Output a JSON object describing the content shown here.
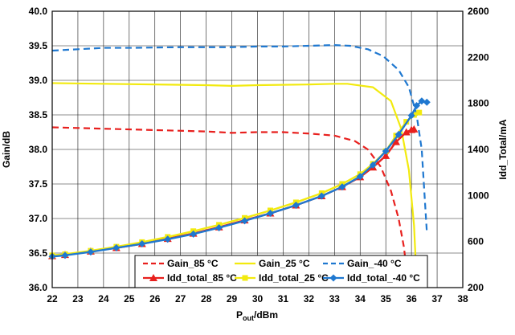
{
  "chart_data": {
    "type": "line",
    "xlabel": "P",
    "xlabel_sub": "out",
    "xlabel_suffix": "/dBm",
    "ylabel_left": "Gain/dB",
    "ylabel_right": "Idd_Total/mA",
    "xlim": [
      22,
      38
    ],
    "ylim_left": [
      36.0,
      40.0
    ],
    "ylim_right": [
      200,
      2600
    ],
    "x_ticks": [
      22,
      23,
      24,
      25,
      26,
      27,
      28,
      29,
      30,
      31,
      32,
      33,
      34,
      35,
      36,
      37,
      38
    ],
    "y_left_ticks": [
      "36.0",
      "36.5",
      "37.0",
      "37.5",
      "38.0",
      "38.5",
      "39.0",
      "39.5",
      "40.0"
    ],
    "y_right_ticks": [
      "200",
      "600",
      "1000",
      "1400",
      "1800",
      "2200",
      "2600"
    ],
    "grid": true,
    "legend_position": "bottom-center",
    "series": [
      {
        "name": "Gain_85 °C",
        "axis": "left",
        "color": "#e8201e",
        "dash": "dashed",
        "marker": "none",
        "x": [
          22,
          24,
          26,
          28,
          29,
          30,
          31,
          32,
          33,
          33.8,
          34.3,
          34.8,
          35.2,
          35.5,
          35.7,
          35.8
        ],
        "y": [
          38.32,
          38.3,
          38.28,
          38.26,
          38.24,
          38.25,
          38.25,
          38.23,
          38.2,
          38.12,
          38.0,
          37.75,
          37.4,
          37.0,
          36.6,
          36.3
        ]
      },
      {
        "name": "Gain_25 °C",
        "axis": "left",
        "color": "#f2ea0e",
        "dash": "solid",
        "marker": "none",
        "x": [
          22,
          24,
          26,
          28,
          29,
          30,
          32,
          33,
          33.5,
          34.5,
          35.2,
          35.6,
          35.9,
          36.1,
          36.2
        ],
        "y": [
          38.96,
          38.95,
          38.94,
          38.93,
          38.92,
          38.93,
          38.94,
          38.95,
          38.95,
          38.9,
          38.7,
          38.3,
          37.7,
          36.9,
          36.1
        ]
      },
      {
        "name": "Gain_-40 °C",
        "axis": "left",
        "color": "#1f78d0",
        "dash": "dashed",
        "marker": "none",
        "x": [
          22,
          23,
          24,
          25,
          27,
          29,
          30,
          31,
          32,
          33,
          33.6,
          34.3,
          34.9,
          35.5,
          35.9,
          36.2,
          36.4,
          36.5,
          36.6
        ],
        "y": [
          39.43,
          39.45,
          39.47,
          39.47,
          39.48,
          39.48,
          39.49,
          39.49,
          39.5,
          39.51,
          39.5,
          39.45,
          39.35,
          39.15,
          38.9,
          38.5,
          38.0,
          37.4,
          36.8
        ]
      },
      {
        "name": "Idd_total_85 °C",
        "axis": "right",
        "color": "#e8201e",
        "dash": "solid",
        "marker": "triangle",
        "x": [
          22,
          22.5,
          23.5,
          24.5,
          25.5,
          26.5,
          27.5,
          28.5,
          29.5,
          30.5,
          31.5,
          32.5,
          33.3,
          34,
          34.5,
          35,
          35.4,
          35.8,
          36,
          36.1
        ],
        "y": [
          475,
          485,
          515,
          545,
          580,
          625,
          670,
          725,
          785,
          845,
          915,
          995,
          1075,
          1160,
          1245,
          1345,
          1465,
          1550,
          1570,
          1575
        ]
      },
      {
        "name": "Idd_total_25 °C",
        "axis": "right",
        "color": "#f2ea0e",
        "dash": "solid",
        "marker": "square",
        "x": [
          22,
          22.5,
          23.5,
          24.5,
          25.5,
          26.5,
          27.5,
          28.5,
          29.5,
          30.5,
          31.5,
          32.5,
          33.3,
          34,
          34.5,
          35,
          35.4,
          35.8,
          36.1,
          36.3
        ],
        "y": [
          480,
          490,
          520,
          555,
          595,
          640,
          690,
          745,
          805,
          870,
          940,
          1020,
          1100,
          1185,
          1275,
          1385,
          1520,
          1640,
          1700,
          1720
        ]
      },
      {
        "name": "Idd_total_-40 °C",
        "axis": "right",
        "color": "#1f78d0",
        "dash": "solid",
        "marker": "diamond",
        "x": [
          22,
          22.5,
          23.5,
          24.5,
          25.5,
          26.5,
          27.5,
          28.5,
          29.5,
          30.5,
          31.5,
          32.5,
          33.3,
          34,
          34.5,
          35,
          35.5,
          36,
          36.2,
          36.4,
          36.6
        ],
        "y": [
          470,
          480,
          510,
          545,
          580,
          620,
          665,
          720,
          780,
          845,
          915,
          995,
          1075,
          1165,
          1265,
          1385,
          1530,
          1695,
          1780,
          1820,
          1810
        ]
      }
    ]
  }
}
